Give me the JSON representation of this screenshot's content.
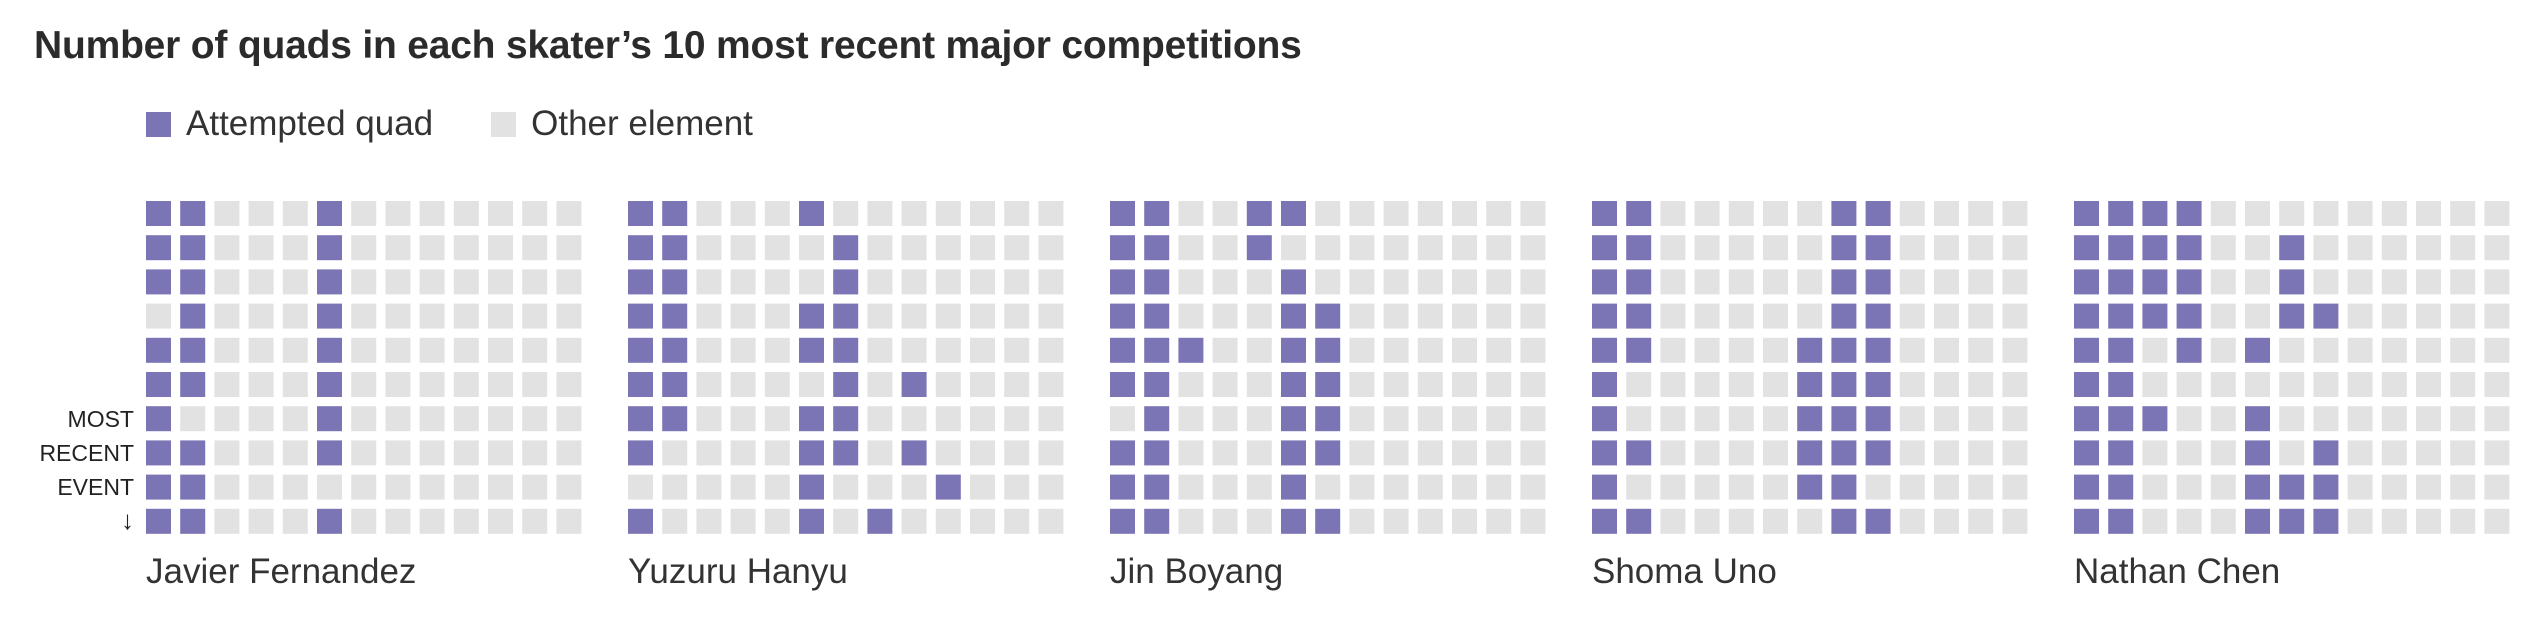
{
  "title": "Number of quads in each skater’s 10 most recent major competitions",
  "legend": [
    {
      "label": "Attempted quad",
      "color": "#7b74b5"
    },
    {
      "label": "Other element",
      "color": "#e2e2e2"
    }
  ],
  "side_label": {
    "line1": "MOST",
    "line2": "RECENT",
    "line3": "EVENT",
    "arrow": "↓"
  },
  "chart_data": {
    "type": "heatmap",
    "title": "Number of quads in each skater’s 10 most recent major competitions",
    "elements_per_event": 13,
    "events_per_skater": 10,
    "order": "top row oldest, bottom row most recent event",
    "colors": {
      "quad": "#7b74b5",
      "other": "#e2e2e2"
    },
    "skaters": [
      {
        "name": "Javier Fernandez",
        "rows": [
          [
            1,
            1,
            0,
            0,
            0,
            1,
            0,
            0,
            0,
            0,
            0,
            0,
            0
          ],
          [
            1,
            1,
            0,
            0,
            0,
            1,
            0,
            0,
            0,
            0,
            0,
            0,
            0
          ],
          [
            1,
            1,
            0,
            0,
            0,
            1,
            0,
            0,
            0,
            0,
            0,
            0,
            0
          ],
          [
            0,
            1,
            0,
            0,
            0,
            1,
            0,
            0,
            0,
            0,
            0,
            0,
            0
          ],
          [
            1,
            1,
            0,
            0,
            0,
            1,
            0,
            0,
            0,
            0,
            0,
            0,
            0
          ],
          [
            1,
            1,
            0,
            0,
            0,
            1,
            0,
            0,
            0,
            0,
            0,
            0,
            0
          ],
          [
            1,
            0,
            0,
            0,
            0,
            1,
            0,
            0,
            0,
            0,
            0,
            0,
            0
          ],
          [
            1,
            1,
            0,
            0,
            0,
            1,
            0,
            0,
            0,
            0,
            0,
            0,
            0
          ],
          [
            1,
            1,
            0,
            0,
            0,
            0,
            0,
            0,
            0,
            0,
            0,
            0,
            0
          ],
          [
            1,
            1,
            0,
            0,
            0,
            1,
            0,
            0,
            0,
            0,
            0,
            0,
            0
          ]
        ]
      },
      {
        "name": "Yuzuru Hanyu",
        "rows": [
          [
            1,
            1,
            0,
            0,
            0,
            1,
            0,
            0,
            0,
            0,
            0,
            0,
            0
          ],
          [
            1,
            1,
            0,
            0,
            0,
            0,
            1,
            0,
            0,
            0,
            0,
            0,
            0
          ],
          [
            1,
            1,
            0,
            0,
            0,
            0,
            1,
            0,
            0,
            0,
            0,
            0,
            0
          ],
          [
            1,
            1,
            0,
            0,
            0,
            1,
            1,
            0,
            0,
            0,
            0,
            0,
            0
          ],
          [
            1,
            1,
            0,
            0,
            0,
            1,
            1,
            0,
            0,
            0,
            0,
            0,
            0
          ],
          [
            1,
            1,
            0,
            0,
            0,
            0,
            1,
            0,
            1,
            0,
            0,
            0,
            0
          ],
          [
            1,
            1,
            0,
            0,
            0,
            1,
            1,
            0,
            0,
            0,
            0,
            0,
            0
          ],
          [
            1,
            0,
            0,
            0,
            0,
            1,
            1,
            0,
            1,
            0,
            0,
            0,
            0
          ],
          [
            0,
            0,
            0,
            0,
            0,
            1,
            0,
            0,
            0,
            1,
            0,
            0,
            0
          ],
          [
            1,
            0,
            0,
            0,
            0,
            1,
            0,
            1,
            0,
            0,
            0,
            0,
            0
          ]
        ]
      },
      {
        "name": "Jin Boyang",
        "rows": [
          [
            1,
            1,
            0,
            0,
            1,
            1,
            0,
            0,
            0,
            0,
            0,
            0,
            0
          ],
          [
            1,
            1,
            0,
            0,
            1,
            0,
            0,
            0,
            0,
            0,
            0,
            0,
            0
          ],
          [
            1,
            1,
            0,
            0,
            0,
            1,
            0,
            0,
            0,
            0,
            0,
            0,
            0
          ],
          [
            1,
            1,
            0,
            0,
            0,
            1,
            1,
            0,
            0,
            0,
            0,
            0,
            0
          ],
          [
            1,
            1,
            1,
            0,
            0,
            1,
            1,
            0,
            0,
            0,
            0,
            0,
            0
          ],
          [
            1,
            1,
            0,
            0,
            0,
            1,
            1,
            0,
            0,
            0,
            0,
            0,
            0
          ],
          [
            0,
            1,
            0,
            0,
            0,
            1,
            1,
            0,
            0,
            0,
            0,
            0,
            0
          ],
          [
            1,
            1,
            0,
            0,
            0,
            1,
            1,
            0,
            0,
            0,
            0,
            0,
            0
          ],
          [
            1,
            1,
            0,
            0,
            0,
            1,
            0,
            0,
            0,
            0,
            0,
            0,
            0
          ],
          [
            1,
            1,
            0,
            0,
            0,
            1,
            1,
            0,
            0,
            0,
            0,
            0,
            0
          ]
        ]
      },
      {
        "name": "Shoma Uno",
        "rows": [
          [
            1,
            1,
            0,
            0,
            0,
            0,
            0,
            1,
            1,
            0,
            0,
            0,
            0
          ],
          [
            1,
            1,
            0,
            0,
            0,
            0,
            0,
            1,
            1,
            0,
            0,
            0,
            0
          ],
          [
            1,
            1,
            0,
            0,
            0,
            0,
            0,
            1,
            1,
            0,
            0,
            0,
            0
          ],
          [
            1,
            1,
            0,
            0,
            0,
            0,
            0,
            1,
            1,
            0,
            0,
            0,
            0
          ],
          [
            1,
            1,
            0,
            0,
            0,
            0,
            1,
            1,
            1,
            0,
            0,
            0,
            0
          ],
          [
            1,
            0,
            0,
            0,
            0,
            0,
            1,
            1,
            1,
            0,
            0,
            0,
            0
          ],
          [
            1,
            0,
            0,
            0,
            0,
            0,
            1,
            1,
            1,
            0,
            0,
            0,
            0
          ],
          [
            1,
            1,
            0,
            0,
            0,
            0,
            1,
            1,
            1,
            0,
            0,
            0,
            0
          ],
          [
            1,
            0,
            0,
            0,
            0,
            0,
            1,
            1,
            0,
            0,
            0,
            0,
            0
          ],
          [
            1,
            1,
            0,
            0,
            0,
            0,
            0,
            1,
            1,
            0,
            0,
            0,
            0
          ]
        ]
      },
      {
        "name": "Nathan Chen",
        "rows": [
          [
            1,
            1,
            1,
            1,
            0,
            0,
            0,
            0,
            0,
            0,
            0,
            0,
            0
          ],
          [
            1,
            1,
            1,
            1,
            0,
            0,
            1,
            0,
            0,
            0,
            0,
            0,
            0
          ],
          [
            1,
            1,
            1,
            1,
            0,
            0,
            1,
            0,
            0,
            0,
            0,
            0,
            0
          ],
          [
            1,
            1,
            1,
            1,
            0,
            0,
            1,
            1,
            0,
            0,
            0,
            0,
            0
          ],
          [
            1,
            1,
            0,
            1,
            0,
            1,
            0,
            0,
            0,
            0,
            0,
            0,
            0
          ],
          [
            1,
            1,
            0,
            0,
            0,
            0,
            0,
            0,
            0,
            0,
            0,
            0,
            0
          ],
          [
            1,
            1,
            1,
            0,
            0,
            1,
            0,
            0,
            0,
            0,
            0,
            0,
            0
          ],
          [
            1,
            1,
            0,
            0,
            0,
            1,
            0,
            1,
            0,
            0,
            0,
            0,
            0
          ],
          [
            1,
            1,
            0,
            0,
            0,
            1,
            1,
            1,
            0,
            0,
            0,
            0,
            0
          ],
          [
            1,
            1,
            0,
            0,
            0,
            1,
            1,
            1,
            0,
            0,
            0,
            0,
            0
          ]
        ]
      }
    ]
  }
}
